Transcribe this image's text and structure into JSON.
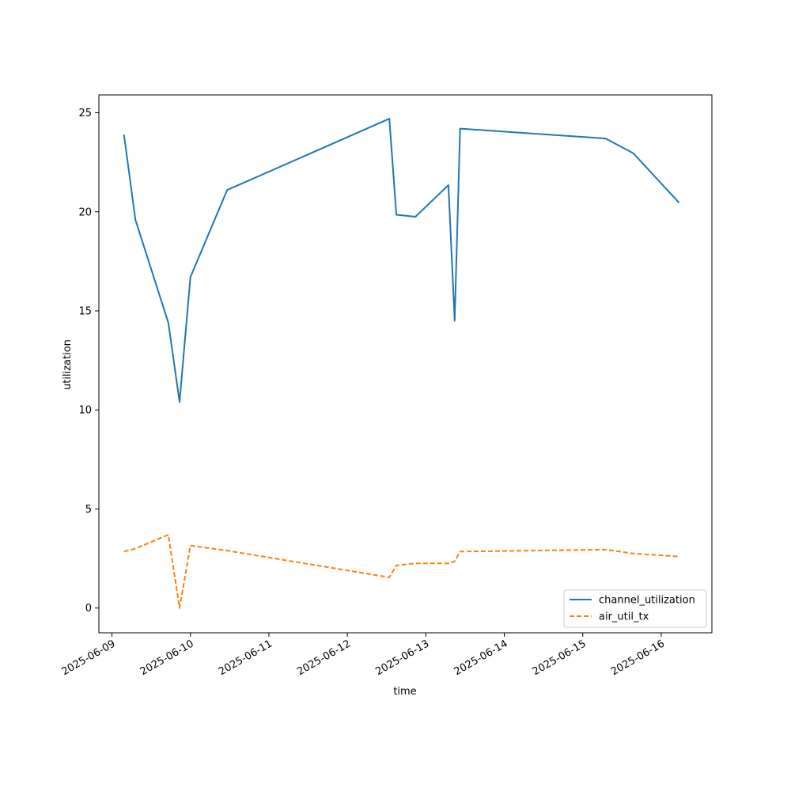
{
  "chart_data": {
    "type": "line",
    "title": "",
    "xlabel": "time",
    "ylabel": "utilization",
    "x_ticks": [
      "2025-06-09",
      "2025-06-10",
      "2025-06-11",
      "2025-06-12",
      "2025-06-13",
      "2025-06-14",
      "2025-06-15",
      "2025-06-16"
    ],
    "y_ticks": [
      0,
      5,
      10,
      15,
      20,
      25
    ],
    "xlim": [
      "2025-06-08 20:00",
      "2025-06-16 15:30"
    ],
    "ylim": [
      -1.25,
      25.9
    ],
    "grid": false,
    "legend_position": "lower-right",
    "series": [
      {
        "name": "channel_utilization",
        "color": "#1f77b4",
        "dash": "solid",
        "points": [
          {
            "x": "2025-06-09 03:40",
            "y": 23.9
          },
          {
            "x": "2025-06-09 07:10",
            "y": 19.6
          },
          {
            "x": "2025-06-09 17:15",
            "y": 14.4
          },
          {
            "x": "2025-06-09 20:40",
            "y": 10.4
          },
          {
            "x": "2025-06-10 00:00",
            "y": 16.7
          },
          {
            "x": "2025-06-10 11:15",
            "y": 21.1
          },
          {
            "x": "2025-06-12 12:50",
            "y": 24.7
          },
          {
            "x": "2025-06-12 15:00",
            "y": 19.85
          },
          {
            "x": "2025-06-12 20:50",
            "y": 19.75
          },
          {
            "x": "2025-06-13 06:55",
            "y": 21.35
          },
          {
            "x": "2025-06-13 08:50",
            "y": 14.5
          },
          {
            "x": "2025-06-13 10:30",
            "y": 24.2
          },
          {
            "x": "2025-06-15 07:00",
            "y": 23.7
          },
          {
            "x": "2025-06-15 15:30",
            "y": 22.95
          },
          {
            "x": "2025-06-16 05:30",
            "y": 20.45
          }
        ]
      },
      {
        "name": "air_util_tx",
        "color": "#ff7f0e",
        "dash": "dashed",
        "points": [
          {
            "x": "2025-06-09 03:40",
            "y": 2.85
          },
          {
            "x": "2025-06-09 07:10",
            "y": 3.0
          },
          {
            "x": "2025-06-09 17:15",
            "y": 3.7
          },
          {
            "x": "2025-06-09 20:40",
            "y": 0.0
          },
          {
            "x": "2025-06-10 00:00",
            "y": 3.15
          },
          {
            "x": "2025-06-10 11:15",
            "y": 2.9
          },
          {
            "x": "2025-06-12 12:50",
            "y": 1.55
          },
          {
            "x": "2025-06-12 15:00",
            "y": 2.15
          },
          {
            "x": "2025-06-12 20:50",
            "y": 2.25
          },
          {
            "x": "2025-06-13 06:55",
            "y": 2.25
          },
          {
            "x": "2025-06-13 08:50",
            "y": 2.35
          },
          {
            "x": "2025-06-13 10:30",
            "y": 2.85
          },
          {
            "x": "2025-06-15 07:00",
            "y": 2.95
          },
          {
            "x": "2025-06-15 15:30",
            "y": 2.75
          },
          {
            "x": "2025-06-16 05:30",
            "y": 2.6
          }
        ]
      }
    ]
  }
}
